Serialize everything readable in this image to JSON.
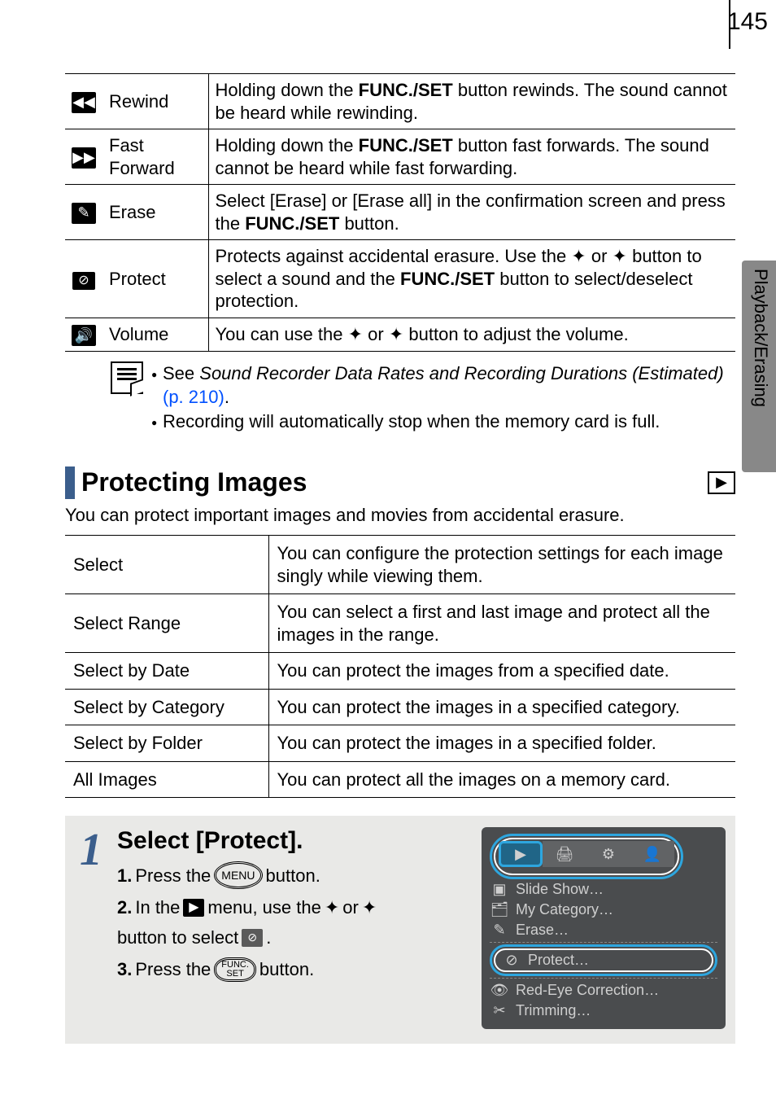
{
  "page_number": "145",
  "side_tab_label": "Playback/Erasing",
  "table1": {
    "rows": [
      {
        "icon": "◀◀",
        "label": "Rewind",
        "desc_a": "Holding down the ",
        "bold": "FUNC./SET",
        "desc_b": " button rewinds. The sound cannot be heard while rewinding."
      },
      {
        "icon": "▶▶",
        "label_a": "Fast",
        "label_b": "Forward",
        "desc_a": "Holding down the ",
        "bold": "FUNC./SET",
        "desc_b": " button fast forwards. The sound cannot be heard while fast forwarding."
      },
      {
        "icon": "✎",
        "label": "Erase",
        "desc_a": "Select [Erase] or [Erase all] in the confirmation screen and press the ",
        "bold": "FUNC./SET",
        "desc_b": " button."
      },
      {
        "icon": "⊘",
        "label": "Protect",
        "desc_a": "Protects against accidental erasure. Use the ",
        "arrow1": "✦",
        "mid": " or ",
        "arrow2": "✦",
        "desc_b": " button to select a sound and the ",
        "bold": "FUNC./SET",
        "desc_c": " button to select/deselect protection."
      },
      {
        "icon": "🔊",
        "label": "Volume",
        "desc_a": "You can use the ",
        "arrow1": "✦",
        "mid": " or ",
        "arrow2": "✦",
        "desc_b": " button to adjust the volume."
      }
    ]
  },
  "note": {
    "item1_a": "See ",
    "item1_i": "Sound Recorder Data Rates and Recording Durations (Estimated)",
    "item1_link": " (p. 210)",
    "item1_end": ".",
    "item2": "Recording will automatically stop when the memory card is full."
  },
  "section": {
    "title": "Protecting Images",
    "icon": "▶",
    "subtitle": "You can protect important images and movies from accidental erasure."
  },
  "table2": {
    "rows": [
      {
        "c1": "Select",
        "c2": "You can configure the protection settings for each image singly while viewing them."
      },
      {
        "c1": "Select Range",
        "c2": "You can select a first and last image and protect all the images in the range."
      },
      {
        "c1": "Select by Date",
        "c2": "You can protect the images from a specified date."
      },
      {
        "c1": "Select by Category",
        "c2": "You can protect the images in a specified category."
      },
      {
        "c1": "Select by Folder",
        "c2": "You can protect the images in a specified folder."
      },
      {
        "c1": "All Images",
        "c2": "You can protect all the images on a memory card."
      }
    ]
  },
  "step": {
    "num": "1",
    "title": "Select [Protect].",
    "l1_a": "1.",
    "l1_b": " Press the ",
    "l1_btn": "MENU",
    "l1_c": "  button.",
    "l2_a": "2.",
    "l2_b": " In the ",
    "l2_c": " menu, use the ",
    "l2_d": " or ",
    "l2_e": " button to select ",
    "l2_f": ".",
    "l3_a": "3.",
    "l3_b": " Press the ",
    "l3_btn1": "FUNC.",
    "l3_btn2": "SET",
    "l3_c": "  button."
  },
  "mock": {
    "tab_play": "▶",
    "tab2": "🖨",
    "tab3": "⚙",
    "tab4": "👤",
    "r1": "Slide Show…",
    "r2": "My Category…",
    "r3": "Erase…",
    "r4": "Protect…",
    "r5": "Red-Eye Correction…",
    "r6": "Trimming…"
  }
}
